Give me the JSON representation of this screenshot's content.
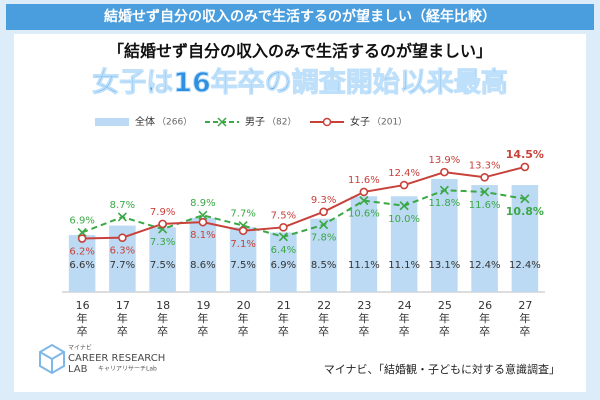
{
  "header": {
    "banner": "結婚せず自分の収入のみで生活するのが望ましい（経年比較）",
    "subtitle": "「結婚せず自分の収入のみで生活するのが望ましい」",
    "headline": "女子は16年卒の調査開始以来最高"
  },
  "chart_data": {
    "type": "bar_line",
    "categories": [
      "16年卒",
      "17年卒",
      "18年卒",
      "19年卒",
      "20年卒",
      "21年卒",
      "22年卒",
      "23年卒",
      "24年卒",
      "25年卒",
      "26年卒",
      "27年卒"
    ],
    "ylim": [
      0,
      16
    ],
    "series": [
      {
        "name": "全体",
        "n_label": "（266）",
        "kind": "bar",
        "color": "#bcdaf3",
        "label_color": "#333333",
        "values": [
          6.6,
          7.7,
          7.5,
          8.6,
          7.5,
          6.9,
          8.5,
          11.1,
          11.1,
          13.1,
          12.4,
          12.4
        ],
        "value_labels": [
          "6.6%",
          "7.7%",
          "7.5%",
          "8.6%",
          "7.5%",
          "6.9%",
          "8.5%",
          "11.1%",
          "11.1%",
          "13.1%",
          "12.4%",
          "12.4%"
        ]
      },
      {
        "name": "男子",
        "n_label": "（82）",
        "kind": "line",
        "color": "#3aa845",
        "label_color": "#3aa845",
        "values": [
          6.9,
          8.7,
          7.3,
          8.9,
          7.7,
          6.4,
          7.8,
          10.6,
          10.0,
          11.8,
          11.6,
          10.8
        ],
        "value_labels": [
          "6.9%",
          "8.7%",
          "7.3%",
          "8.9%",
          "7.7%",
          "6.4%",
          "7.8%",
          "10.6%",
          "10.0%",
          "11.8%",
          "11.6%",
          "10.8%"
        ]
      },
      {
        "name": "女子",
        "n_label": "（201）",
        "kind": "line",
        "color": "#c8413b",
        "label_color": "#c8413b",
        "values": [
          6.2,
          6.3,
          7.9,
          8.1,
          7.1,
          7.5,
          9.3,
          11.6,
          12.4,
          13.9,
          13.3,
          14.5
        ],
        "value_labels": [
          "6.2%",
          "6.3%",
          "7.9%",
          "8.1%",
          "7.1%",
          "7.5%",
          "9.3%",
          "11.6%",
          "12.4%",
          "13.9%",
          "13.3%",
          "14.5%"
        ]
      }
    ]
  },
  "logo": {
    "brand": "マイナビ",
    "line1": "CAREER RESEARCH",
    "line2": "LAB",
    "line3": "キャリアリサーチLab"
  },
  "source": "マイナビ、「結婚観・子どもに対する意識調査」"
}
